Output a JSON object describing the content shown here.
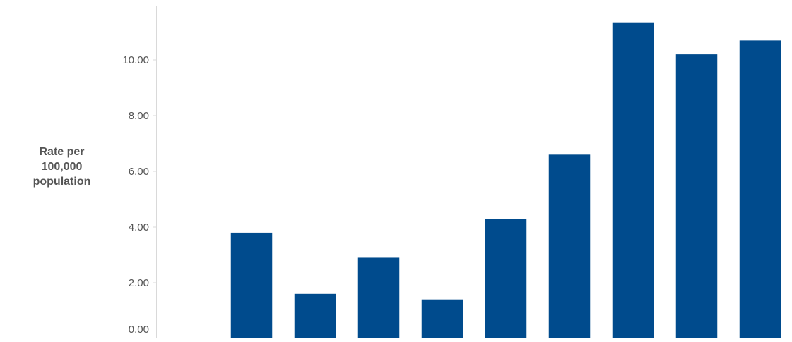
{
  "chart_data": {
    "type": "bar",
    "categories": [
      "",
      "",
      "",
      "",
      "",
      "",
      "",
      "",
      "",
      ""
    ],
    "values": [
      0,
      3.8,
      1.6,
      2.9,
      1.4,
      4.3,
      6.6,
      11.35,
      10.2,
      10.7
    ],
    "ylabel": "Rate per\n100,000\npopulation",
    "ylim": [
      0,
      11.95
    ],
    "yticks": [
      0,
      2,
      4,
      6,
      8,
      10
    ],
    "ytick_labels": [
      "0.00",
      "2.00",
      "4.00",
      "6.00",
      "8.00",
      "10.00"
    ],
    "grid": false,
    "legend": "none",
    "bar_color": "#004b8d",
    "axis_color": "#d9d9d9",
    "tick_label_color": "#555555"
  }
}
